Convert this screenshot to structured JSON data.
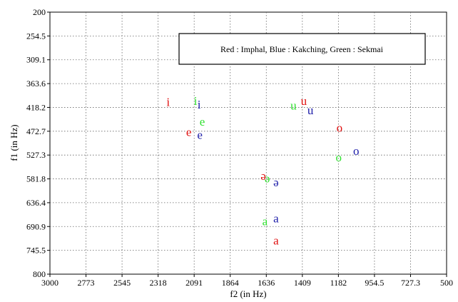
{
  "chart_data": {
    "type": "scatter",
    "xlabel": "f2 (in Hz)",
    "ylabel": "f1 (in Hz)",
    "xlim": [
      3000,
      500
    ],
    "ylim": [
      200,
      800
    ],
    "x_reversed": true,
    "y_reversed": true,
    "grid": true,
    "legend_text": "Red : Imphal, Blue : Kakching, Green : Sekmai",
    "x_ticks": [
      "3000",
      "2773",
      "2545",
      "2318",
      "2091",
      "1864",
      "1636",
      "1409",
      "1182",
      "954.5",
      "727.3",
      "500"
    ],
    "y_ticks": [
      "200",
      "254.5",
      "309.1",
      "363.6",
      "418.2",
      "472.7",
      "527.3",
      "581.8",
      "636.4",
      "690.9",
      "745.5",
      "800"
    ],
    "colors": {
      "Imphal": "#e01010",
      "Kakching": "#1c1ca8",
      "Sekmai": "#30e030"
    },
    "series": [
      {
        "name": "Imphal",
        "color": "#e01010",
        "points": [
          {
            "label": "i",
            "x": 2255,
            "y": 405
          },
          {
            "label": "e",
            "x": 2125,
            "y": 474
          },
          {
            "label": "u",
            "x": 1400,
            "y": 403
          },
          {
            "label": "o",
            "x": 1175,
            "y": 464
          },
          {
            "label": "ə",
            "x": 1655,
            "y": 574
          },
          {
            "label": "a",
            "x": 1575,
            "y": 722
          }
        ]
      },
      {
        "name": "Kakching",
        "color": "#1c1ca8",
        "points": [
          {
            "label": "i",
            "x": 2060,
            "y": 411
          },
          {
            "label": "e",
            "x": 2055,
            "y": 480
          },
          {
            "label": "u",
            "x": 1358,
            "y": 424
          },
          {
            "label": "o",
            "x": 1070,
            "y": 517
          },
          {
            "label": "ə",
            "x": 1575,
            "y": 589
          },
          {
            "label": "a",
            "x": 1575,
            "y": 672
          }
        ]
      },
      {
        "name": "Sekmai",
        "color": "#30e030",
        "points": [
          {
            "label": "i",
            "x": 2082,
            "y": 403
          },
          {
            "label": "e",
            "x": 2040,
            "y": 450
          },
          {
            "label": "u",
            "x": 1465,
            "y": 413
          },
          {
            "label": "o",
            "x": 1180,
            "y": 532
          },
          {
            "label": "ə",
            "x": 1630,
            "y": 580
          },
          {
            "label": "a",
            "x": 1645,
            "y": 678
          }
        ]
      }
    ]
  }
}
